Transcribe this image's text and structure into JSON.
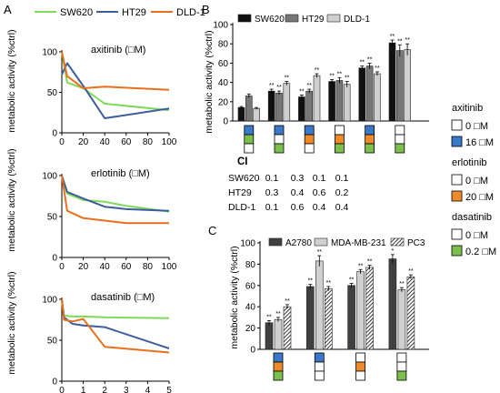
{
  "panels": {
    "a": "A",
    "b": "B",
    "c": "C"
  },
  "colors": {
    "SW620": "#7ed95a",
    "HT29": "#3c5f9c",
    "DLD-1": "#e8701a",
    "axitinib": "#3a78c9",
    "erlotinib": "#ef8a2a",
    "dasatinib": "#7cbf4a",
    "b_SW620": "#111111",
    "b_HT29": "#777777",
    "b_DLD-1": "#cfcfcf",
    "c_A2780": "#404040",
    "c_MDA": "#d0d0d0"
  },
  "legend_a": [
    "SW620",
    "HT29",
    "DLD-1"
  ],
  "chart_data": [
    {
      "id": "A1",
      "type": "line",
      "title": "axitinib (□M)",
      "ylabel": "metabolic activity (%ctrl)",
      "xlim": [
        0,
        100
      ],
      "ylim": [
        0,
        100
      ],
      "xticks": [
        0,
        20,
        40,
        60,
        80,
        100
      ],
      "yticks": [
        0,
        50,
        100
      ],
      "series": [
        {
          "name": "SW620",
          "x": [
            0,
            5,
            20,
            40,
            100
          ],
          "y": [
            100,
            62,
            55,
            36,
            28
          ]
        },
        {
          "name": "HT29",
          "x": [
            0,
            5,
            20,
            40,
            100
          ],
          "y": [
            72,
            86,
            58,
            18,
            30
          ]
        },
        {
          "name": "DLD-1",
          "x": [
            0,
            5,
            20,
            40,
            100
          ],
          "y": [
            100,
            70,
            55,
            57,
            53
          ]
        }
      ]
    },
    {
      "id": "A2",
      "type": "line",
      "title": "erlotinib (□M)",
      "ylabel": "metabolic activity (%ctrl)",
      "xlim": [
        0,
        100
      ],
      "ylim": [
        0,
        100
      ],
      "xticks": [
        0,
        20,
        40,
        60,
        80,
        100
      ],
      "yticks": [
        0,
        50,
        100
      ],
      "series": [
        {
          "name": "SW620",
          "x": [
            0,
            5,
            20,
            40,
            60,
            100
          ],
          "y": [
            100,
            78,
            70,
            68,
            63,
            56
          ]
        },
        {
          "name": "HT29",
          "x": [
            0,
            5,
            20,
            40,
            60,
            100
          ],
          "y": [
            100,
            80,
            72,
            62,
            59,
            57
          ]
        },
        {
          "name": "DLD-1",
          "x": [
            0,
            5,
            20,
            40,
            60,
            100
          ],
          "y": [
            100,
            57,
            48,
            45,
            42,
            42
          ]
        }
      ]
    },
    {
      "id": "A3",
      "type": "line",
      "title": "dasatinib (□M)",
      "ylabel": "metabolic activity (%ctrl)",
      "xlim": [
        0,
        5
      ],
      "ylim": [
        0,
        100
      ],
      "xticks": [
        0,
        1,
        2,
        3,
        4,
        5
      ],
      "yticks": [
        0,
        50,
        100
      ],
      "series": [
        {
          "name": "SW620",
          "x": [
            0,
            0.1,
            0.5,
            1,
            2,
            5
          ],
          "y": [
            100,
            80,
            79,
            79,
            78,
            77
          ]
        },
        {
          "name": "HT29",
          "x": [
            0,
            0.1,
            0.5,
            1,
            2,
            5
          ],
          "y": [
            100,
            78,
            70,
            68,
            66,
            40
          ]
        },
        {
          "name": "DLD-1",
          "x": [
            0,
            0.1,
            0.5,
            1,
            2,
            5
          ],
          "y": [
            100,
            75,
            73,
            76,
            42,
            35
          ]
        }
      ]
    },
    {
      "id": "B",
      "type": "bar",
      "ylabel": "metabolic activity (%ctrl)",
      "ylim": [
        0,
        100
      ],
      "yticks": [
        0,
        20,
        40,
        60,
        80,
        100
      ],
      "series": [
        {
          "name": "SW620",
          "values": [
            14,
            31,
            25,
            41,
            55,
            81
          ]
        },
        {
          "name": "HT29",
          "values": [
            26,
            29,
            31,
            42,
            57,
            73
          ]
        },
        {
          "name": "DLD-1",
          "values": [
            13,
            39,
            47,
            38,
            49,
            74
          ]
        }
      ],
      "errors": [
        [
          1,
          2,
          2,
          2,
          2,
          3
        ],
        [
          2,
          2,
          2,
          3,
          3,
          6
        ],
        [
          1,
          2,
          2,
          3,
          2,
          6
        ]
      ],
      "significance": [
        [
          "",
          "**",
          "**",
          "**",
          "**",
          "**"
        ],
        [
          "",
          "**",
          "**",
          "**",
          "**",
          "**"
        ],
        [
          "",
          "**",
          "**",
          "**",
          "**",
          "**"
        ]
      ],
      "treatments": [
        [
          "axitinib",
          "dasatinib",
          "none"
        ],
        [
          "axitinib",
          "none",
          "dasatinib"
        ],
        [
          "axitinib",
          "erlotinib",
          "none"
        ],
        [
          "none",
          "erlotinib",
          "dasatinib"
        ],
        [
          "axitinib",
          "erlotinib",
          "dasatinib"
        ],
        [
          "none",
          "none",
          "dasatinib"
        ]
      ]
    },
    {
      "id": "C",
      "type": "bar",
      "ylabel": "metabolic activity  (%ctrl)",
      "ylim": [
        0,
        100
      ],
      "yticks": [
        0,
        20,
        40,
        60,
        80,
        100
      ],
      "series": [
        {
          "name": "A2780",
          "values": [
            25,
            59,
            60,
            85
          ]
        },
        {
          "name": "MDA-MB-231",
          "values": [
            28,
            83,
            73,
            56
          ]
        },
        {
          "name": "PC3",
          "values": [
            40,
            57,
            77,
            68
          ]
        }
      ],
      "errors": [
        [
          2,
          2,
          2,
          4
        ],
        [
          2,
          5,
          2,
          2
        ],
        [
          2,
          2,
          2,
          2
        ]
      ],
      "significance": [
        [
          "**",
          "**",
          "**",
          "*"
        ],
        [
          "**",
          "**",
          "**",
          "**"
        ],
        [
          "**",
          "**",
          "**",
          "**"
        ]
      ],
      "treatments": [
        [
          "axitinib",
          "erlotinib",
          "dasatinib"
        ],
        [
          "axitinib",
          "none",
          "none"
        ],
        [
          "none",
          "erlotinib",
          "none"
        ],
        [
          "none",
          "none",
          "dasatinib"
        ]
      ]
    }
  ],
  "ci_table": {
    "header": "CI",
    "rows": [
      {
        "label": "SW620",
        "values": [
          "0.1",
          "0.3",
          "0.1",
          "0.1"
        ]
      },
      {
        "label": "HT29",
        "values": [
          "0.3",
          "0.4",
          "0.6",
          "0.2"
        ]
      },
      {
        "label": "DLD-1",
        "values": [
          "0.1",
          "0.6",
          "0.4",
          "0.4"
        ]
      }
    ]
  },
  "treatment_legend": [
    {
      "drug": "axitinib",
      "items": [
        {
          "label": "0 □M",
          "color": "#ffffff"
        },
        {
          "label": "16 □M",
          "color": "#3a78c9"
        }
      ]
    },
    {
      "drug": "erlotinib",
      "items": [
        {
          "label": "0 □M",
          "color": "#ffffff"
        },
        {
          "label": "20 □M",
          "color": "#ef8a2a"
        }
      ]
    },
    {
      "drug": "dasatinib",
      "items": [
        {
          "label": "0 □M",
          "color": "#ffffff"
        },
        {
          "label": "0.2 □M",
          "color": "#7cbf4a"
        }
      ]
    }
  ]
}
